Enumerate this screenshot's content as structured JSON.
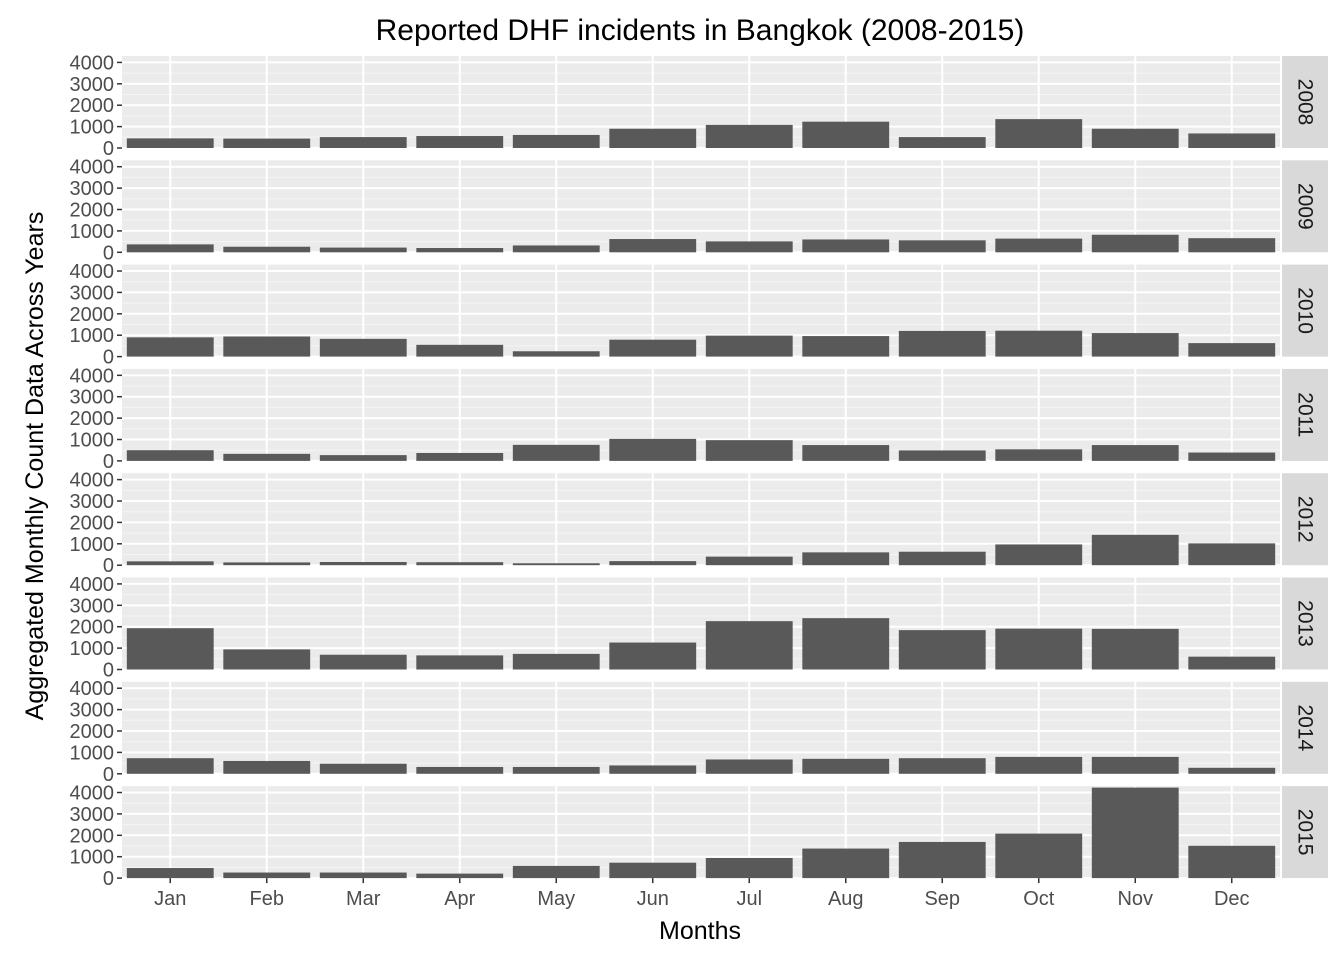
{
  "chart_data": {
    "type": "bar",
    "title": "Reported DHF incidents in Bangkok (2008-2015)",
    "xlabel": "Months",
    "ylabel": "Aggregated Monthly Count Data Across Years",
    "categories": [
      "Jan",
      "Feb",
      "Mar",
      "Apr",
      "May",
      "Jun",
      "Jul",
      "Aug",
      "Sep",
      "Oct",
      "Nov",
      "Dec"
    ],
    "y_ticks": [
      0,
      1000,
      2000,
      3000,
      4000
    ],
    "ylim": [
      0,
      4300
    ],
    "grid": true,
    "facet": "rows by year, shared x axis",
    "series": [
      {
        "name": "2008",
        "values": [
          450,
          440,
          510,
          560,
          610,
          900,
          1080,
          1230,
          510,
          1350,
          900,
          680
        ]
      },
      {
        "name": "2009",
        "values": [
          370,
          260,
          220,
          200,
          320,
          620,
          510,
          600,
          560,
          640,
          820,
          660
        ]
      },
      {
        "name": "2010",
        "values": [
          900,
          940,
          830,
          550,
          250,
          790,
          980,
          960,
          1200,
          1210,
          1100,
          630
        ]
      },
      {
        "name": "2011",
        "values": [
          500,
          330,
          270,
          370,
          750,
          1030,
          970,
          740,
          490,
          540,
          740,
          390
        ]
      },
      {
        "name": "2012",
        "values": [
          180,
          130,
          150,
          140,
          90,
          190,
          400,
          600,
          630,
          970,
          1420,
          1020
        ]
      },
      {
        "name": "2013",
        "values": [
          1930,
          940,
          690,
          660,
          730,
          1260,
          2260,
          2400,
          1840,
          1910,
          1900,
          600
        ]
      },
      {
        "name": "2014",
        "values": [
          730,
          600,
          470,
          320,
          320,
          390,
          670,
          700,
          730,
          790,
          790,
          280
        ]
      },
      {
        "name": "2015",
        "values": [
          470,
          260,
          260,
          210,
          570,
          720,
          940,
          1380,
          1690,
          2080,
          4230,
          1510
        ]
      }
    ]
  },
  "colors": {
    "bar": "#595959",
    "panel_background": "#ebebeb",
    "grid_major": "#ffffff",
    "grid_minor": "#f5f5f5",
    "strip_background": "#d9d9d9",
    "tick_label": "#4d4d4d"
  }
}
